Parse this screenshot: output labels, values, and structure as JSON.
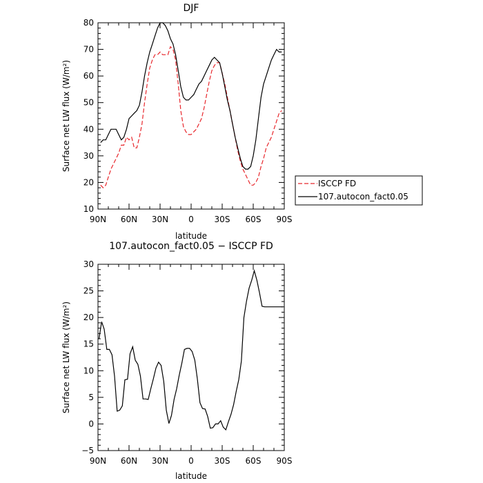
{
  "chart_data": [
    {
      "type": "line",
      "title": "DJF",
      "xlabel": "latitude",
      "ylabel": "Surface net LW flux (W/m²)",
      "x_ticks": [
        "90N",
        "60N",
        "30N",
        "0",
        "30S",
        "60S",
        "90S"
      ],
      "xlim": [
        90,
        -90
      ],
      "ylim": [
        10,
        80
      ],
      "y_ticks": [
        10,
        20,
        30,
        40,
        50,
        60,
        70,
        80
      ],
      "legend": {
        "position": "right"
      },
      "series": [
        {
          "name": "ISCCP FD",
          "color": "#e8262b",
          "style": "dashed",
          "x": [
            87.5,
            85,
            82.5,
            80,
            77.5,
            75,
            72.5,
            70,
            67.5,
            65,
            62.5,
            60,
            57.5,
            55,
            52.5,
            50,
            47.5,
            45,
            42.5,
            40,
            37.5,
            35,
            32.5,
            30,
            27.5,
            25,
            22.5,
            20,
            17.5,
            15,
            12.5,
            10,
            7.5,
            5,
            2.5,
            0,
            -2.5,
            -5,
            -7.5,
            -10,
            -12.5,
            -15,
            -17.5,
            -20,
            -22.5,
            -25,
            -27.5,
            -30,
            -32.5,
            -35,
            -37.5,
            -40,
            -42.5,
            -45,
            -47.5,
            -50,
            -52.5,
            -55,
            -57.5,
            -60,
            -62.5,
            -65,
            -67.5,
            -70,
            -72.5,
            -75,
            -77.5,
            -80,
            -82.5,
            -85,
            -87.5
          ],
          "values": [
            19,
            18,
            19,
            22,
            25,
            27,
            29,
            31,
            34,
            34,
            37,
            36,
            37,
            33,
            33,
            37,
            42,
            50,
            57,
            63,
            66,
            68,
            68,
            69,
            68,
            68,
            68,
            71,
            70,
            66,
            57,
            47,
            41,
            39,
            38,
            38,
            39,
            40,
            42,
            44,
            48,
            53,
            58,
            62,
            64,
            65,
            65,
            61,
            57,
            52,
            47,
            42,
            37,
            32,
            28,
            25,
            23,
            21,
            19,
            19,
            20,
            22,
            26,
            29,
            33,
            35,
            37,
            40,
            43,
            46,
            47
          ]
        },
        {
          "name": "107.autocon_fact0.05",
          "color": "#000000",
          "style": "solid",
          "x": [
            87.5,
            85,
            82.5,
            80,
            77.5,
            75,
            72.5,
            70,
            67.5,
            65,
            62.5,
            60,
            57.5,
            55,
            52.5,
            50,
            47.5,
            45,
            42.5,
            40,
            37.5,
            35,
            32.5,
            30,
            27.5,
            25,
            22.5,
            20,
            17.5,
            15,
            12.5,
            10,
            7.5,
            5,
            2.5,
            0,
            -2.5,
            -5,
            -7.5,
            -10,
            -12.5,
            -15,
            -17.5,
            -20,
            -22.5,
            -25,
            -27.5,
            -30,
            -32.5,
            -35,
            -37.5,
            -40,
            -42.5,
            -45,
            -47.5,
            -50,
            -52.5,
            -55,
            -57.5,
            -60,
            -62.5,
            -65,
            -67.5,
            -70,
            -72.5,
            -75,
            -77.5,
            -80,
            -82.5,
            -85,
            -87.5
          ],
          "values": [
            35,
            36,
            36,
            38,
            40,
            40,
            40,
            38,
            36,
            37,
            40,
            44,
            45,
            46,
            47,
            49,
            54,
            60,
            65,
            69,
            72,
            75,
            78,
            80,
            80,
            79,
            77,
            74,
            72,
            68,
            62,
            56,
            52,
            51,
            51,
            52,
            53,
            55,
            57,
            58,
            60,
            62,
            64,
            66,
            67,
            66,
            65,
            61,
            56,
            51,
            47,
            42,
            37,
            33,
            29,
            26,
            25,
            25,
            26,
            30,
            36,
            44,
            52,
            57,
            60,
            63,
            66,
            68,
            70,
            69,
            69
          ]
        }
      ]
    },
    {
      "type": "line",
      "title": "107.autocon_fact0.05 − ISCCP FD",
      "xlabel": "latitude",
      "ylabel": "Surface net LW flux (W/m²)",
      "x_ticks": [
        "90N",
        "60N",
        "30N",
        "0",
        "30S",
        "60S",
        "90S"
      ],
      "xlim": [
        90,
        -90
      ],
      "ylim": [
        -5,
        30
      ],
      "y_ticks": [
        -5,
        0,
        5,
        10,
        15,
        20,
        25,
        30
      ],
      "series": [
        {
          "color": "#000000",
          "style": "solid",
          "x": [
            89,
            86.5,
            84,
            81.5,
            79,
            76.5,
            74,
            71.5,
            69,
            66.5,
            64,
            61.5,
            59,
            56.5,
            54,
            51.5,
            49,
            46.5,
            44,
            41.5,
            39,
            36.5,
            34,
            31.5,
            29,
            26.5,
            24,
            21.5,
            19,
            16.5,
            14,
            11.5,
            9,
            6.5,
            4,
            1.5,
            -1,
            -3.5,
            -6,
            -8.5,
            -11,
            -13.5,
            -16,
            -18.5,
            -21,
            -23.5,
            -26,
            -28.5,
            -31,
            -33.5,
            -36,
            -38.5,
            -41,
            -43.5,
            -46,
            -48.5,
            -51,
            -53.5,
            -56,
            -58.5,
            -61,
            -63.5,
            -66,
            -68.5,
            -71,
            -73.5,
            -76,
            -78.5,
            -81,
            -83.5,
            -86,
            -88.5
          ],
          "values": [
            16,
            19.2,
            17.8,
            14,
            14,
            13,
            9,
            2.4,
            2.6,
            3.4,
            8.3,
            8.4,
            13.2,
            14.5,
            12,
            11.2,
            9,
            4.7,
            4.7,
            4.6,
            6.6,
            8.5,
            10.5,
            11.6,
            11,
            8,
            2.6,
            0.1,
            1.6,
            4.6,
            6.6,
            9.2,
            11.4,
            14,
            14.2,
            14.2,
            13.6,
            12,
            8.5,
            4,
            2.9,
            2.8,
            1.4,
            -0.8,
            -0.7,
            0,
            0,
            0.6,
            -0.6,
            -1.1,
            0.4,
            1.8,
            3.6,
            6.1,
            8.3,
            11.8,
            20,
            23.1,
            25.5,
            27,
            28.8,
            27,
            24.7,
            22.1,
            22,
            22,
            22,
            22,
            22,
            22,
            22,
            22
          ]
        }
      ]
    }
  ]
}
